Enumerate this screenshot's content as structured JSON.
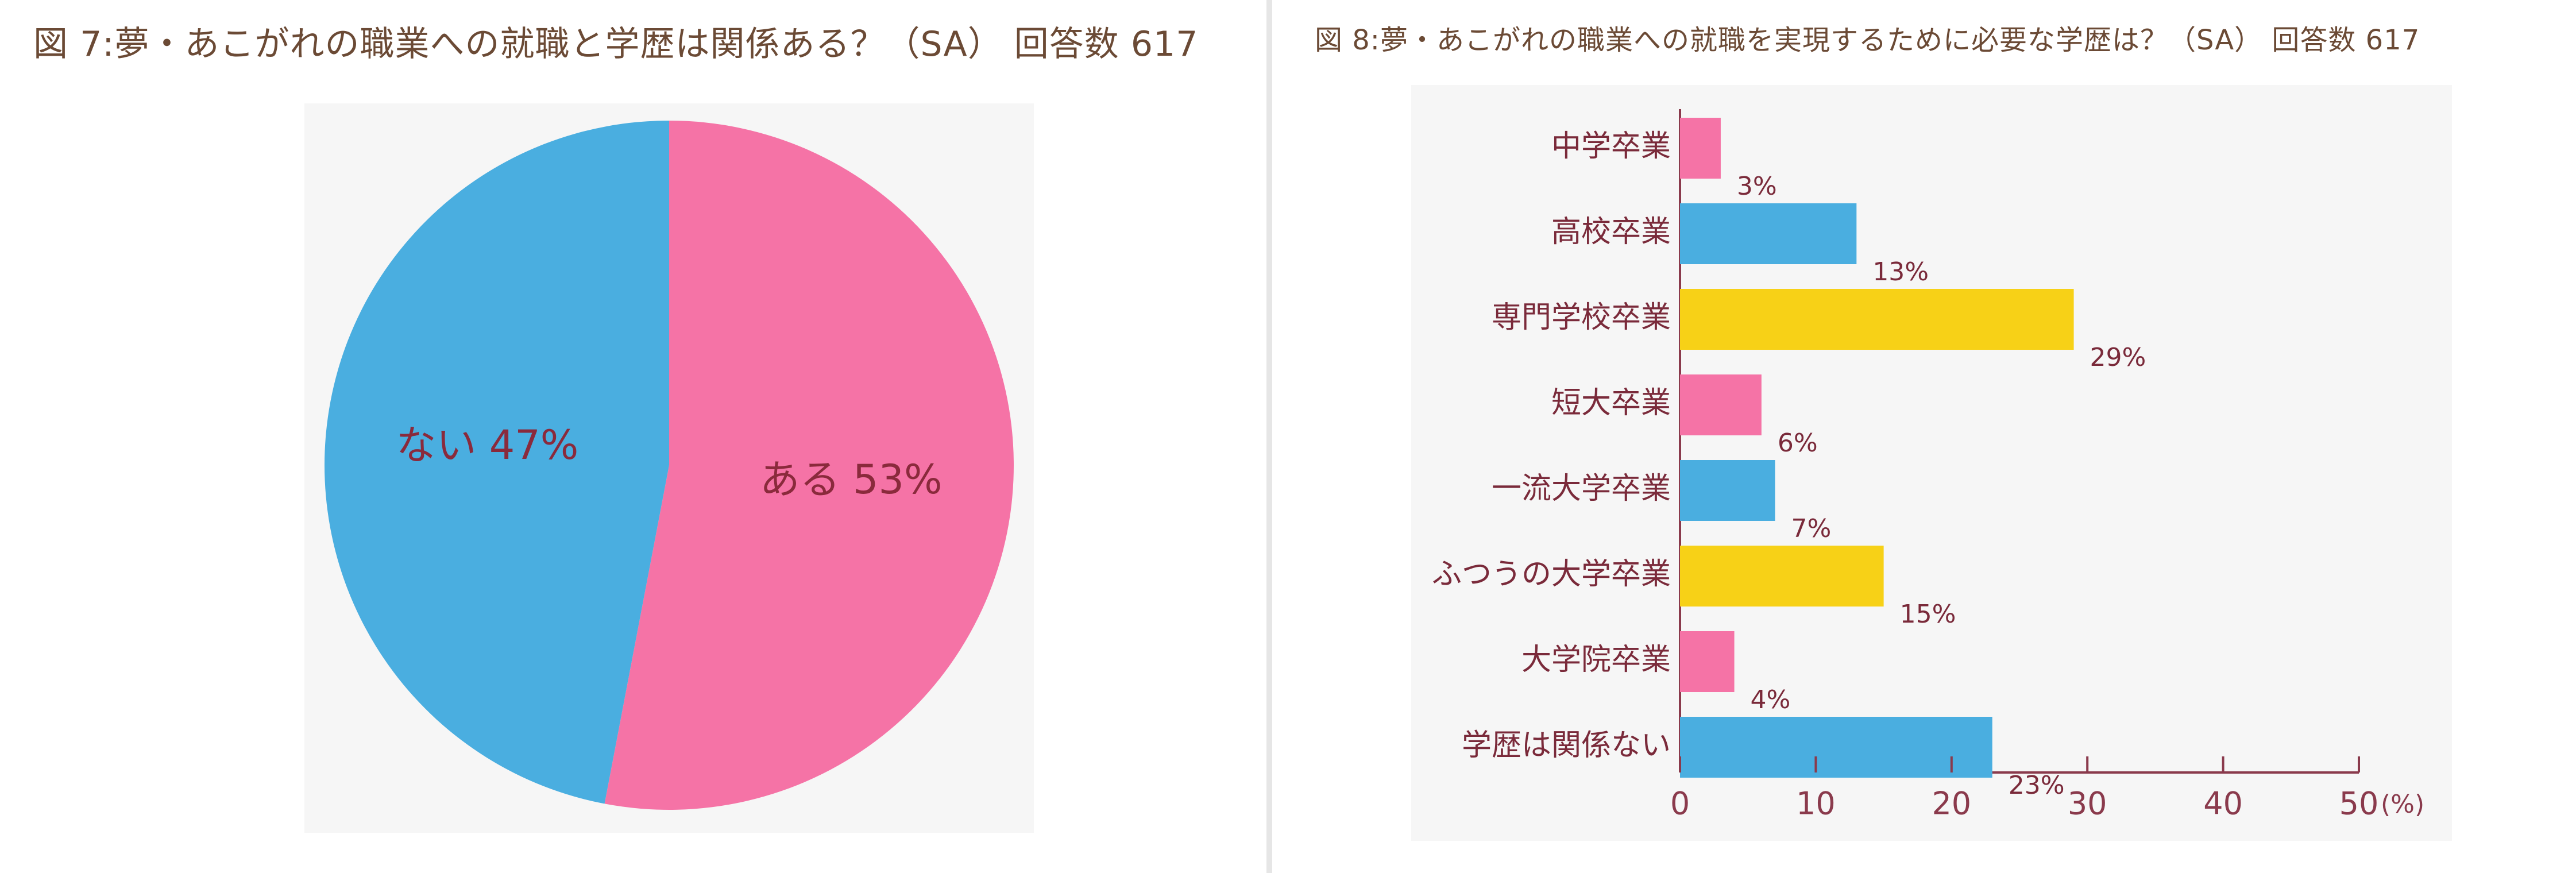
{
  "figures": [
    {
      "title": "図 7:夢・あこがれの職業への就職と学歴は関係ある？（SA） 回答数 617",
      "chart_data": {
        "type": "pie",
        "slices": [
          {
            "label": "ある",
            "value": 53,
            "display": "53%"
          },
          {
            "label": "ない",
            "value": 47,
            "display": "47%"
          }
        ],
        "colors": {
          "ある": "#f573a6",
          "ない": "#4aaee0"
        },
        "label_color": "#8a2a3c"
      }
    },
    {
      "title": "図 8:夢・あこがれの職業への就職を実現するために必要な学歴は？（SA） 回答数 617",
      "chart_data": {
        "type": "bar",
        "orientation": "horizontal",
        "categories": [
          "中学卒業",
          "高校卒業",
          "専門学校卒業",
          "短大卒業",
          "一流大学卒業",
          "ふつうの大学卒業",
          "大学院卒業",
          "学歴は関係ない"
        ],
        "values": [
          3,
          13,
          29,
          6,
          7,
          15,
          4,
          23
        ],
        "value_labels": [
          "3%",
          "13%",
          "29%",
          "6%",
          "7%",
          "15%",
          "4%",
          "23%"
        ],
        "colors": [
          "#f573a6",
          "#4aaee0",
          "#f7d117",
          "#f573a6",
          "#4aaee0",
          "#f7d117",
          "#f573a6",
          "#4aaee0"
        ],
        "xlim": [
          0,
          50
        ],
        "xticks": [
          "0",
          "10",
          "20",
          "30",
          "40",
          "50"
        ],
        "xunit": "(%)",
        "axis_color": "#8a3a4c",
        "text_color": "#7a2a3a"
      }
    }
  ]
}
